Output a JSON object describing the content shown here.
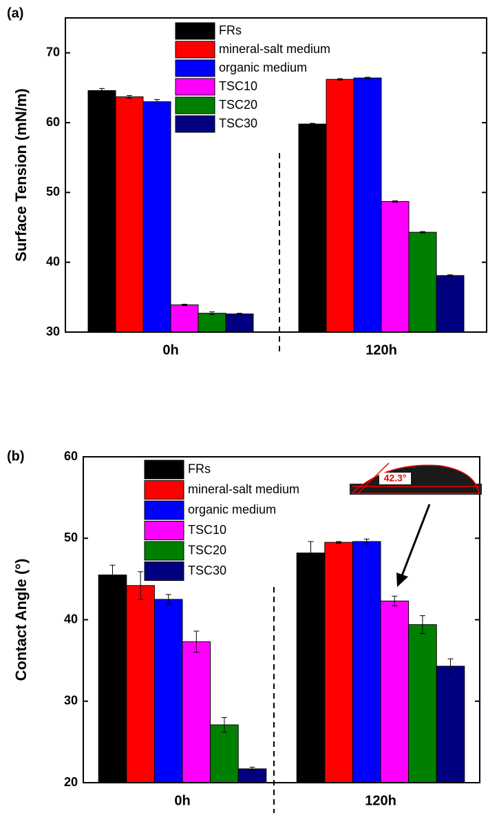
{
  "chart_data": [
    {
      "type": "bar",
      "panel_label": "(a)",
      "ylabel": "Surface Tension (mN/m)",
      "categories": [
        "0h",
        "120h"
      ],
      "series": [
        {
          "name": "FRs",
          "color": "#000000",
          "values": [
            64.6,
            59.8
          ],
          "errors": [
            0.3,
            0.1
          ]
        },
        {
          "name": "mineral-salt medium",
          "color": "#ff0000",
          "values": [
            63.7,
            66.2
          ],
          "errors": [
            0.2,
            0.1
          ]
        },
        {
          "name": "organic medium",
          "color": "#0000ff",
          "values": [
            63.0,
            66.4
          ],
          "errors": [
            0.3,
            0.1
          ]
        },
        {
          "name": "TSC10",
          "color": "#ff00ff",
          "values": [
            33.9,
            48.7
          ],
          "errors": [
            0.1,
            0.1
          ]
        },
        {
          "name": "TSC20",
          "color": "#008000",
          "values": [
            32.7,
            44.3
          ],
          "errors": [
            0.2,
            0.1
          ]
        },
        {
          "name": "TSC30",
          "color": "#000080",
          "values": [
            32.6,
            38.1
          ],
          "errors": [
            0.1,
            0.1
          ]
        }
      ],
      "ylim": [
        30,
        75
      ],
      "yticks": [
        30,
        40,
        50,
        60,
        70
      ]
    },
    {
      "type": "bar",
      "panel_label": "(b)",
      "ylabel": "Contact Angle (°)",
      "categories": [
        "0h",
        "120h"
      ],
      "series": [
        {
          "name": "FRs",
          "color": "#000000",
          "values": [
            45.5,
            48.2
          ],
          "errors": [
            1.2,
            1.4
          ]
        },
        {
          "name": "mineral-salt medium",
          "color": "#ff0000",
          "values": [
            44.2,
            49.5
          ],
          "errors": [
            1.7,
            0.1
          ]
        },
        {
          "name": "organic medium",
          "color": "#0000ff",
          "values": [
            42.5,
            49.6
          ],
          "errors": [
            0.6,
            0.3
          ]
        },
        {
          "name": "TSC10",
          "color": "#ff00ff",
          "values": [
            37.3,
            42.3
          ],
          "errors": [
            1.3,
            0.6
          ]
        },
        {
          "name": "TSC20",
          "color": "#008000",
          "values": [
            27.1,
            39.4
          ],
          "errors": [
            0.9,
            1.1
          ]
        },
        {
          "name": "TSC30",
          "color": "#000080",
          "values": [
            21.7,
            34.3
          ],
          "errors": [
            0.2,
            0.9
          ]
        }
      ],
      "ylim": [
        20,
        60
      ],
      "yticks": [
        20,
        30,
        40,
        50,
        60
      ],
      "annotation": "42.3°"
    }
  ]
}
